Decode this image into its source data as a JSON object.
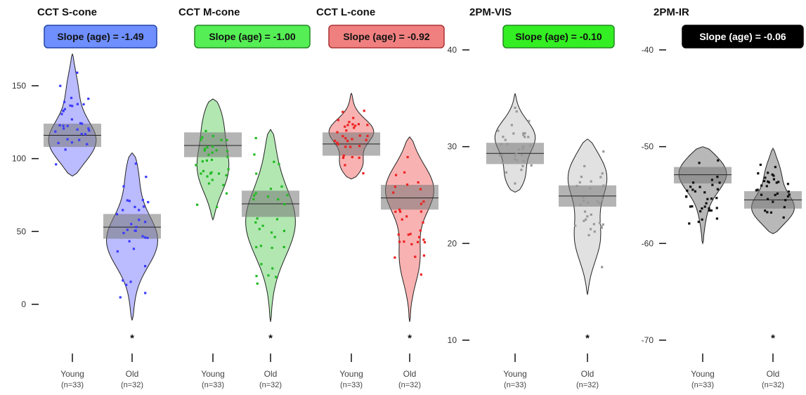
{
  "chart_data": [
    {
      "type": "pirate",
      "title": "CCT S-cone",
      "annotation": "Slope (age) = -1.49",
      "color": "#3b3bff",
      "box_fill": "#6f8fff",
      "box_stroke": "#2244aa",
      "box_text_color": "#111111",
      "yticks": [
        0,
        50,
        100,
        150
      ],
      "ylim": [
        -20,
        175
      ],
      "categories": [
        "Young",
        "Old"
      ],
      "n_labels": [
        "(n=33)",
        "(n=32)"
      ],
      "significance": [
        "",
        "*"
      ],
      "groups": [
        {
          "name": "Young",
          "mean": 116,
          "ci": [
            108,
            124
          ],
          "min": 88,
          "max": 172
        },
        {
          "name": "Old",
          "mean": 53,
          "ci": [
            45,
            62
          ],
          "min": -11,
          "max": 104
        }
      ]
    },
    {
      "type": "pirate",
      "title": "CCT M-cone",
      "annotation": "Slope (age) = -1.00",
      "color": "#22bb22",
      "box_fill": "#55ee55",
      "box_stroke": "#228822",
      "box_text_color": "#111111",
      "yticks": [],
      "ylim": [
        -20,
        175
      ],
      "categories": [
        "Young",
        "Old"
      ],
      "n_labels": [
        "(n=33)",
        "(n=32)"
      ],
      "significance": [
        "",
        "*"
      ],
      "groups": [
        {
          "name": "Young",
          "mean": 109,
          "ci": [
            101,
            118
          ],
          "min": 58,
          "max": 141
        },
        {
          "name": "Old",
          "mean": 69,
          "ci": [
            60,
            78
          ],
          "min": -12,
          "max": 120
        }
      ]
    },
    {
      "type": "pirate",
      "title": "CCT L-cone",
      "annotation": "Slope (age) = -0.92",
      "color": "#ee2222",
      "box_fill": "#f08080",
      "box_stroke": "#aa3333",
      "box_text_color": "#111111",
      "yticks": [],
      "ylim": [
        -20,
        175
      ],
      "categories": [
        "Young",
        "Old"
      ],
      "n_labels": [
        "(n=33)",
        "(n=32)"
      ],
      "significance": [
        "",
        "*"
      ],
      "groups": [
        {
          "name": "Young",
          "mean": 110,
          "ci": [
            102,
            118
          ],
          "min": 86,
          "max": 145
        },
        {
          "name": "Old",
          "mean": 73,
          "ci": [
            65,
            82
          ],
          "min": -12,
          "max": 115
        }
      ]
    },
    {
      "type": "pirate",
      "title": "2PM-VIS",
      "annotation": "Slope (age) = -0.10",
      "color": "#aaaaaa",
      "box_fill": "#33ee22",
      "box_stroke": "#228822",
      "box_text_color": "#111111",
      "yticks": [
        10,
        20,
        30,
        40
      ],
      "ylim": [
        9,
        42
      ],
      "categories": [
        "Young",
        "Old"
      ],
      "n_labels": [
        "(n=33)",
        "(n=32)"
      ],
      "significance": [
        "",
        "*"
      ],
      "groups": [
        {
          "name": "Young",
          "mean": 29.3,
          "ci": [
            28.2,
            30.4
          ],
          "min": 25.3,
          "max": 35.5
        },
        {
          "name": "Old",
          "mean": 24.9,
          "ci": [
            23.8,
            26.0
          ],
          "min": 14.7,
          "max": 30.8
        }
      ]
    },
    {
      "type": "pirate",
      "title": "2PM-IR",
      "annotation": "Slope (age) = -0.06",
      "color": "#333333",
      "box_fill": "#000000",
      "box_stroke": "#000000",
      "box_text_color": "#ffffff",
      "yticks": [
        -70,
        -60,
        -50,
        -40
      ],
      "ylim": [
        -71,
        -38
      ],
      "categories": [
        "Young",
        "Old"
      ],
      "n_labels": [
        "(n=33)",
        "(n=32)"
      ],
      "significance": [
        "",
        "*"
      ],
      "groups": [
        {
          "name": "Young",
          "mean": -52.9,
          "ci": [
            -53.8,
            -52.1
          ],
          "min": -60.0,
          "max": -50.0
        },
        {
          "name": "Old",
          "mean": -55.5,
          "ci": [
            -56.4,
            -54.6
          ],
          "min": -59.0,
          "max": -50.2
        }
      ]
    }
  ]
}
